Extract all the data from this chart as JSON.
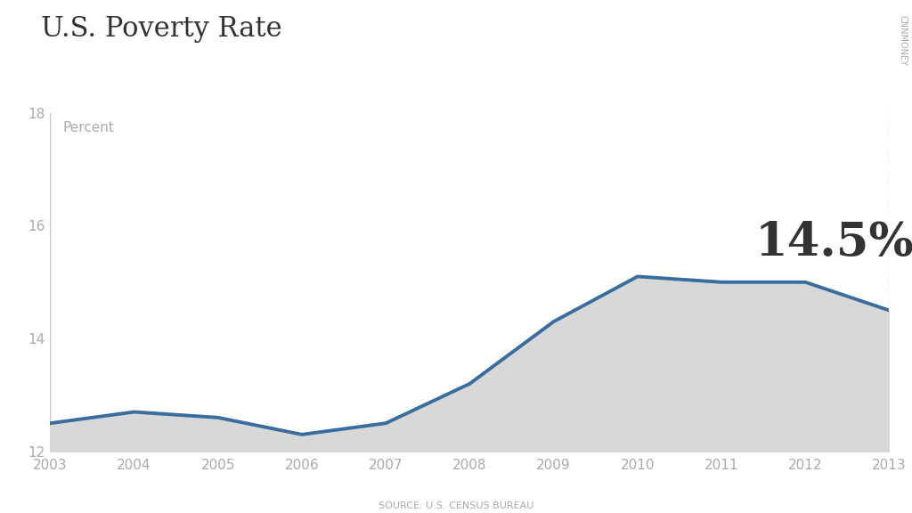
{
  "title": "U.S. Poverty Rate",
  "ylabel_label": "Percent",
  "source": "SOURCE: U.S. CENSUS BUREAU",
  "cnnmoney_label": "CNNMONEY",
  "years": [
    2003,
    2004,
    2005,
    2006,
    2007,
    2008,
    2009,
    2010,
    2011,
    2012,
    2013
  ],
  "values": [
    12.5,
    12.7,
    12.6,
    12.3,
    12.5,
    13.2,
    14.3,
    15.1,
    15.0,
    15.0,
    14.5
  ],
  "annotation": "14.5%",
  "ylim": [
    12,
    18
  ],
  "yticks": [
    12,
    14,
    16,
    18
  ],
  "line_color": "#3a6d9e",
  "fill_color": "#d8d8d8",
  "background_color": "#ffffff",
  "title_color": "#333333",
  "border_color": "#c8c8c8",
  "tick_label_color": "#aaaaaa",
  "annotation_color": "#333333",
  "annotation_fontsize": 38,
  "title_fontsize": 22,
  "tick_fontsize": 11,
  "source_fontsize": 8,
  "cnnmoney_fontsize": 7,
  "line_width": 2.8,
  "dashed_line_color": "#bbbbbb"
}
